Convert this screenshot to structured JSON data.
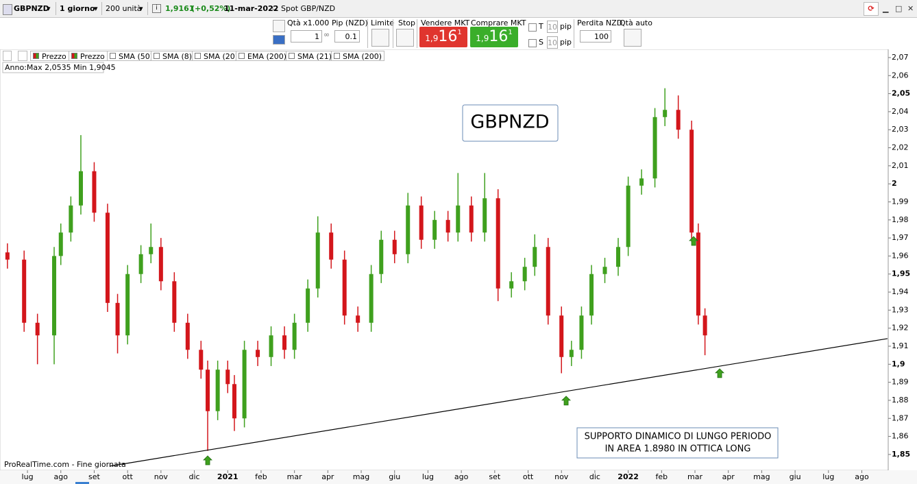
{
  "toolbar": {
    "symbol": "GBPNZD",
    "period": "1 giorno",
    "units": "200 unità",
    "price": "1,9161",
    "change": "(+0,52%)",
    "date": "11-mar-2022",
    "instrument": "Spot GBP/NZD"
  },
  "order_panel": {
    "qty_label": "Qtà x1.000",
    "qty": "1",
    "pip_label": "Pip (NZD)",
    "pip": "0.1",
    "limit": "Limite",
    "stop": "Stop",
    "sell": {
      "label": "Vendere MKT",
      "price_small": "1,9",
      "price_big": "16",
      "price_ext": "1"
    },
    "buy": {
      "label": "Comprare MKT",
      "price_small": "1,9",
      "price_big": "16",
      "price_ext": "1"
    },
    "t_label": "T",
    "t_value": "10",
    "t_unit": "pip",
    "s_label": "S",
    "s_value": "10",
    "s_unit": "pip",
    "loss_label": "Perdita NZD",
    "loss": "100",
    "auto_qty": "Qtà auto"
  },
  "indicators": [
    "Prezzo",
    "Prezzo",
    "SMA (50)",
    "SMA (8)",
    "SMA (20)",
    "EMA (200)",
    "SMA (21)",
    "SMA (200)"
  ],
  "range_info": "Anno:Max 2,0535 Min 1,9045",
  "source": "ProRealTime.com - Fine giornata",
  "chart_data": {
    "type": "candlestick",
    "title": "GBPNZD",
    "annotation": [
      "SUPPORTO DINAMICO DI LUNGO PERIODO",
      "IN AREA 1.8980 IN OTTICA LONG"
    ],
    "up_color": "#3fa01e",
    "down_color": "#d3161b",
    "x": [
      -0.6,
      -0.1,
      0.3,
      0.8,
      1.0,
      1.3,
      1.6,
      2.0,
      2.4,
      2.7,
      3.0,
      3.4,
      3.7,
      4.0,
      4.4,
      4.8,
      5.2,
      5.4,
      5.7,
      6.0,
      6.2,
      6.5,
      6.9,
      7.3,
      7.7,
      8.0,
      8.4,
      8.7,
      9.1,
      9.5,
      9.9,
      10.3,
      10.6,
      11.0,
      11.4,
      11.8,
      12.2,
      12.6,
      12.9,
      13.3,
      13.7,
      14.1,
      14.5,
      14.9,
      15.2,
      15.6,
      16.0,
      16.3,
      16.6,
      16.9,
      17.3,
      17.7,
      18.0,
      18.4,
      18.8,
      19.1,
      19.5,
      19.9,
      20.1,
      20.3
    ],
    "open": [
      1.962,
      1.958,
      1.923,
      1.916,
      1.96,
      1.973,
      1.988,
      2.007,
      1.984,
      1.934,
      1.916,
      1.95,
      1.961,
      1.965,
      1.946,
      1.923,
      1.908,
      1.897,
      1.874,
      1.897,
      1.889,
      1.87,
      1.908,
      1.904,
      1.916,
      1.908,
      1.923,
      1.942,
      1.973,
      1.958,
      1.927,
      1.923,
      1.95,
      1.969,
      1.961,
      1.988,
      1.969,
      1.98,
      1.973,
      1.988,
      1.973,
      1.992,
      1.942,
      1.946,
      1.954,
      1.965,
      1.927,
      1.904,
      1.908,
      1.927,
      1.95,
      1.954,
      1.965,
      1.999,
      2.003,
      2.037,
      2.041,
      2.03,
      1.973,
      1.927
    ],
    "high": [
      1.967,
      1.963,
      1.928,
      1.965,
      1.978,
      1.993,
      2.027,
      2.012,
      1.989,
      1.939,
      1.955,
      1.966,
      1.978,
      1.97,
      1.951,
      1.928,
      1.913,
      1.902,
      1.902,
      1.902,
      1.894,
      1.913,
      1.913,
      1.921,
      1.921,
      1.928,
      1.947,
      1.982,
      1.978,
      1.963,
      1.932,
      1.955,
      1.974,
      1.974,
      1.995,
      1.993,
      1.985,
      1.985,
      2.006,
      1.993,
      2.006,
      1.997,
      1.951,
      1.959,
      1.972,
      1.97,
      1.932,
      1.913,
      1.932,
      1.955,
      1.959,
      1.97,
      2.004,
      2.008,
      2.042,
      2.053,
      2.049,
      2.035,
      1.978,
      1.931
    ],
    "low": [
      1.953,
      1.918,
      1.9,
      1.9,
      1.955,
      1.968,
      1.983,
      1.979,
      1.929,
      1.906,
      1.911,
      1.945,
      1.956,
      1.941,
      1.918,
      1.903,
      1.892,
      1.852,
      1.869,
      1.884,
      1.863,
      1.865,
      1.899,
      1.899,
      1.903,
      1.903,
      1.918,
      1.937,
      1.953,
      1.922,
      1.918,
      1.918,
      1.945,
      1.956,
      1.956,
      1.964,
      1.964,
      1.968,
      1.968,
      1.968,
      1.968,
      1.935,
      1.937,
      1.941,
      1.949,
      1.922,
      1.895,
      1.899,
      1.903,
      1.922,
      1.945,
      1.949,
      1.96,
      1.994,
      1.998,
      2.032,
      2.025,
      1.968,
      1.922,
      1.905
    ],
    "close": [
      1.958,
      1.923,
      1.916,
      1.96,
      1.973,
      1.988,
      2.007,
      1.984,
      1.934,
      1.916,
      1.95,
      1.961,
      1.965,
      1.946,
      1.923,
      1.908,
      1.897,
      1.874,
      1.897,
      1.889,
      1.87,
      1.908,
      1.904,
      1.916,
      1.908,
      1.923,
      1.942,
      1.973,
      1.958,
      1.927,
      1.923,
      1.95,
      1.969,
      1.961,
      1.988,
      1.969,
      1.98,
      1.973,
      1.988,
      1.973,
      1.992,
      1.942,
      1.946,
      1.954,
      1.965,
      1.927,
      1.904,
      1.908,
      1.927,
      1.95,
      1.954,
      1.965,
      1.999,
      2.003,
      2.037,
      2.041,
      2.03,
      1.973,
      1.927,
      1.916
    ],
    "trend_line": {
      "x": [
        2.46,
        25.77
      ],
      "y": [
        1.8435,
        1.9142
      ]
    },
    "arrows": {
      "x": [
        5.4,
        16.14,
        20.74,
        19.96
      ],
      "y": [
        1.8492,
        1.8823,
        1.8975,
        1.9708
      ]
    },
    "xlim": [
      -0.72,
      25.77
    ],
    "xticks": [
      {
        "value": 0,
        "label": "lug"
      },
      {
        "value": 1,
        "label": "ago"
      },
      {
        "value": 2,
        "label": "set"
      },
      {
        "value": 3,
        "label": "ott"
      },
      {
        "value": 4,
        "label": "nov"
      },
      {
        "value": 5,
        "label": "dic"
      },
      {
        "value": 6,
        "label": "2021"
      },
      {
        "value": 7,
        "label": "feb"
      },
      {
        "value": 8,
        "label": "mar"
      },
      {
        "value": 9,
        "label": "apr"
      },
      {
        "value": 10,
        "label": "mag"
      },
      {
        "value": 11,
        "label": "giu"
      },
      {
        "value": 12,
        "label": "lug"
      },
      {
        "value": 13,
        "label": "ago"
      },
      {
        "value": 14,
        "label": "set"
      },
      {
        "value": 15,
        "label": "ott"
      },
      {
        "value": 16,
        "label": "nov"
      },
      {
        "value": 17,
        "label": "dic"
      },
      {
        "value": 18,
        "label": "2022"
      },
      {
        "value": 19,
        "label": "feb"
      },
      {
        "value": 20,
        "label": "mar"
      },
      {
        "value": 21,
        "label": "apr"
      },
      {
        "value": 22,
        "label": "mag"
      },
      {
        "value": 23,
        "label": "giu"
      },
      {
        "value": 24,
        "label": "lug"
      },
      {
        "value": 25,
        "label": "ago"
      }
    ],
    "ylim": [
      1.8416,
      2.0734
    ],
    "yticks": [
      {
        "value": 1.85,
        "label": "1,85"
      },
      {
        "value": 1.86,
        "label": "1,86"
      },
      {
        "value": 1.87,
        "label": "1,87"
      },
      {
        "value": 1.88,
        "label": "1,88"
      },
      {
        "value": 1.89,
        "label": "1,89"
      },
      {
        "value": 1.9,
        "label": "1,9"
      },
      {
        "value": 1.91,
        "label": "1,91"
      },
      {
        "value": 1.92,
        "label": "1,92"
      },
      {
        "value": 1.93,
        "label": "1,93"
      },
      {
        "value": 1.94,
        "label": "1,94"
      },
      {
        "value": 1.95,
        "label": "1,95"
      },
      {
        "value": 1.96,
        "label": "1,96"
      },
      {
        "value": 1.97,
        "label": "1,97"
      },
      {
        "value": 1.98,
        "label": "1,98"
      },
      {
        "value": 1.99,
        "label": "1,99"
      },
      {
        "value": 2,
        "label": "2"
      },
      {
        "value": 2.01,
        "label": "2,01"
      },
      {
        "value": 2.02,
        "label": "2,02"
      },
      {
        "value": 2.03,
        "label": "2,03"
      },
      {
        "value": 2.04,
        "label": "2,04"
      },
      {
        "value": 2.05,
        "label": "2,05"
      },
      {
        "value": 2.06,
        "label": "2,06"
      },
      {
        "value": 2.07,
        "label": "2,07"
      }
    ],
    "grid": false
  }
}
